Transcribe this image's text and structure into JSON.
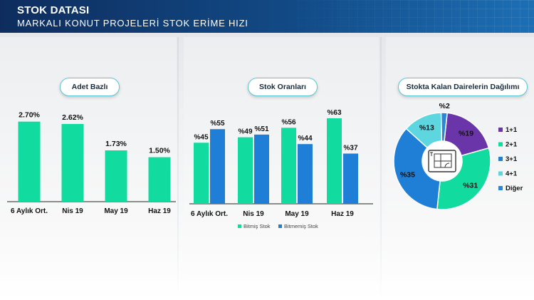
{
  "header": {
    "title": "STOK DATASI",
    "subtitle": "MARKALI KONUT PROJELERİ STOK ERİME HIZI"
  },
  "panels": {
    "adet": {
      "label": "Adet Bazlı"
    },
    "stok": {
      "label": "Stok Oranları"
    },
    "dagilim": {
      "label": "Stokta Kalan Dairelerin Dağılımı"
    }
  },
  "chart_data": [
    {
      "type": "bar",
      "title": "Adet Bazlı",
      "categories": [
        "6 Aylık Ort.",
        "Nis 19",
        "May 19",
        "Haz 19"
      ],
      "values": [
        2.7,
        2.62,
        1.73,
        1.5
      ],
      "value_labels": [
        "2.70%",
        "2.62%",
        "1.73%",
        "1.50%"
      ],
      "ylim": [
        0,
        3
      ],
      "color": "#12dba0"
    },
    {
      "type": "bar",
      "title": "Stok Oranları",
      "categories": [
        "6 Aylık Ort.",
        "Nis 19",
        "May 19",
        "Haz 19"
      ],
      "series": [
        {
          "name": "Bitmiş Stok",
          "values": [
            45,
            49,
            56,
            63
          ],
          "labels": [
            "%45",
            "%49",
            "%56",
            "%63"
          ],
          "color": "#12dba0"
        },
        {
          "name": "Bitmemiş Stok",
          "values": [
            55,
            51,
            44,
            37
          ],
          "labels": [
            "%55",
            "%51",
            "%44",
            "%37"
          ],
          "color": "#1f7fd6"
        }
      ],
      "ylim": [
        0,
        70
      ],
      "legend": "bottom"
    },
    {
      "type": "pie",
      "title": "Stokta Kalan Dairelerin Dağılımı",
      "slices": [
        {
          "name": "1+1",
          "value": 19,
          "label": "%19",
          "color": "#6a35a8"
        },
        {
          "name": "2+1",
          "value": 31,
          "label": "%31",
          "color": "#12dba0"
        },
        {
          "name": "3+1",
          "value": 35,
          "label": "%35",
          "color": "#1f7fd6"
        },
        {
          "name": "4+1",
          "value": 13,
          "label": "%13",
          "color": "#5dd6e0"
        },
        {
          "name": "Diğer",
          "value": 2,
          "label": "%2",
          "color": "#2a86d6"
        }
      ],
      "legend": "right",
      "donut": true
    }
  ]
}
